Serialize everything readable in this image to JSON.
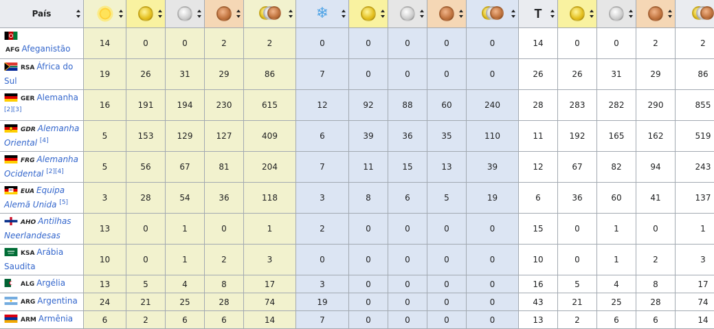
{
  "header": {
    "country": "País",
    "total_letter": "T",
    "icons": {
      "summer": "sun-icon",
      "winter": "snowflake-icon",
      "gold": "gold-medal-icon",
      "silver": "silver-medal-icon",
      "bronze": "bronze-medal-icon",
      "all": "all-medals-icon"
    }
  },
  "colors": {
    "summer_bg": "#f2f2ce",
    "winter_bg": "#dce5f3",
    "gold_header": "#f9f2a0",
    "silver_header": "#e6e6e6",
    "bronze_header": "#f5d7b5",
    "link": "#3366cc"
  },
  "rows": [
    {
      "code": "AFG",
      "name": "Afeganistão",
      "italic": false,
      "notes": "",
      "flag": "afg",
      "cells": [
        "14",
        "0",
        "0",
        "2",
        "2",
        "0",
        "0",
        "0",
        "0",
        "0",
        "14",
        "0",
        "0",
        "2",
        "2"
      ]
    },
    {
      "code": "RSA",
      "name": "África do Sul",
      "italic": false,
      "notes": "",
      "flag": "rsa",
      "cells": [
        "19",
        "26",
        "31",
        "29",
        "86",
        "7",
        "0",
        "0",
        "0",
        "0",
        "26",
        "26",
        "31",
        "29",
        "86"
      ]
    },
    {
      "code": "GER",
      "name": "Alemanha",
      "italic": false,
      "notes": "[2][3]",
      "flag": "ger",
      "cells": [
        "16",
        "191",
        "194",
        "230",
        "615",
        "12",
        "92",
        "88",
        "60",
        "240",
        "28",
        "283",
        "282",
        "290",
        "855"
      ]
    },
    {
      "code": "GDR",
      "name": "Alemanha Oriental",
      "italic": true,
      "notes": "[4]",
      "flag": "gdr",
      "cells": [
        "5",
        "153",
        "129",
        "127",
        "409",
        "6",
        "39",
        "36",
        "35",
        "110",
        "11",
        "192",
        "165",
        "162",
        "519"
      ]
    },
    {
      "code": "FRG",
      "name": "Alemanha Ocidental",
      "italic": true,
      "notes": "[2][4]",
      "flag": "ger",
      "cells": [
        "5",
        "56",
        "67",
        "81",
        "204",
        "7",
        "11",
        "15",
        "13",
        "39",
        "12",
        "67",
        "82",
        "94",
        "243"
      ]
    },
    {
      "code": "EUA",
      "name": "Equipa Alemã Unida",
      "italic": true,
      "notes": "[5]",
      "flag": "eua",
      "cells": [
        "3",
        "28",
        "54",
        "36",
        "118",
        "3",
        "8",
        "6",
        "5",
        "19",
        "6",
        "36",
        "60",
        "41",
        "137"
      ]
    },
    {
      "code": "AHO",
      "name": "Antilhas Neerlandesas",
      "italic": true,
      "notes": "",
      "flag": "aho",
      "cells": [
        "13",
        "0",
        "1",
        "0",
        "1",
        "2",
        "0",
        "0",
        "0",
        "0",
        "15",
        "0",
        "1",
        "0",
        "1"
      ]
    },
    {
      "code": "KSA",
      "name": "Arábia Saudita",
      "italic": false,
      "notes": "",
      "flag": "ksa",
      "cells": [
        "10",
        "0",
        "1",
        "2",
        "3",
        "0",
        "0",
        "0",
        "0",
        "0",
        "10",
        "0",
        "1",
        "2",
        "3"
      ]
    },
    {
      "code": "ALG",
      "name": "Argélia",
      "italic": false,
      "notes": "",
      "flag": "alg",
      "short": true,
      "cells": [
        "13",
        "5",
        "4",
        "8",
        "17",
        "3",
        "0",
        "0",
        "0",
        "0",
        "16",
        "5",
        "4",
        "8",
        "17"
      ]
    },
    {
      "code": "ARG",
      "name": "Argentina",
      "italic": false,
      "notes": "",
      "flag": "arg",
      "short": true,
      "cells": [
        "24",
        "21",
        "25",
        "28",
        "74",
        "19",
        "0",
        "0",
        "0",
        "0",
        "43",
        "21",
        "25",
        "28",
        "74"
      ]
    },
    {
      "code": "ARM",
      "name": "Armênia",
      "italic": false,
      "notes": "",
      "flag": "arm",
      "short": true,
      "cells": [
        "6",
        "2",
        "6",
        "6",
        "14",
        "7",
        "0",
        "0",
        "0",
        "0",
        "13",
        "2",
        "6",
        "6",
        "14"
      ]
    }
  ]
}
